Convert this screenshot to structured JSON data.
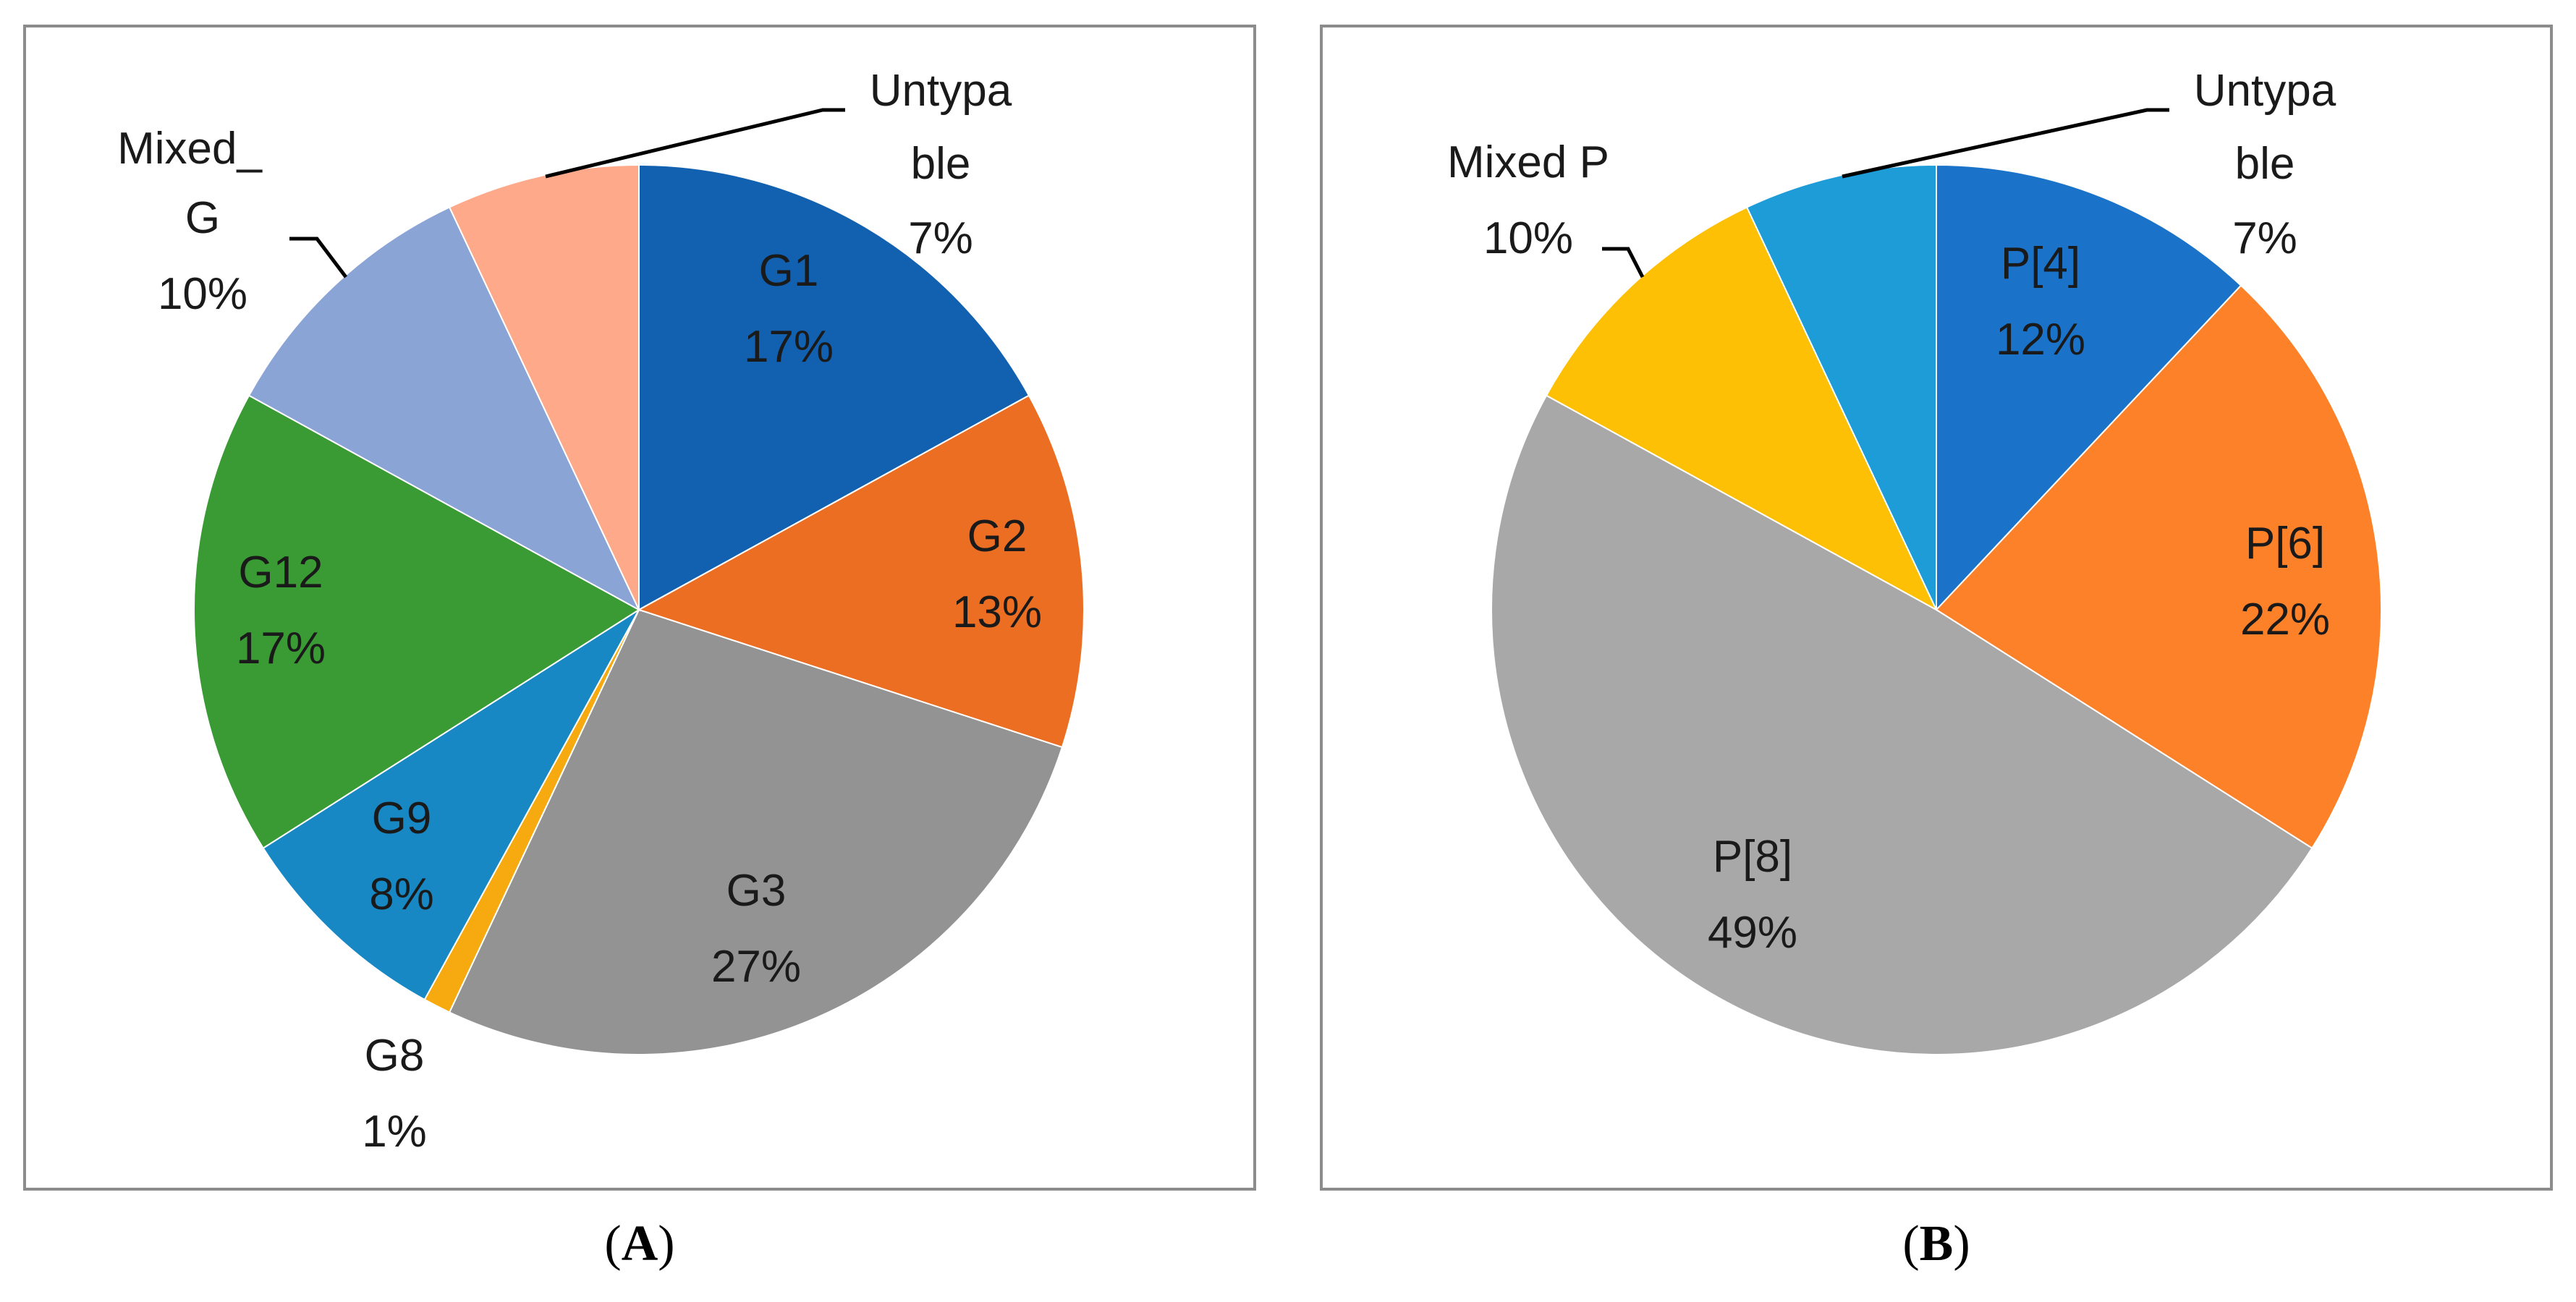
{
  "chart_data": [
    {
      "type": "pie",
      "panel_label": "A",
      "start_angle_deg": 0,
      "direction": "clockwise",
      "slices": [
        {
          "name": "G1",
          "value": 17,
          "label": "17%",
          "color": "#1261b0"
        },
        {
          "name": "G2",
          "value": 13,
          "label": "13%",
          "color": "#ec6e22"
        },
        {
          "name": "G3",
          "value": 27,
          "label": "27%",
          "color": "#939393"
        },
        {
          "name": "G8",
          "value": 1,
          "label": "1%",
          "color": "#f6aa10"
        },
        {
          "name": "G9",
          "value": 8,
          "label": "8%",
          "color": "#1788c4"
        },
        {
          "name": "G12",
          "value": 17,
          "label": "17%",
          "color": "#3a9a34"
        },
        {
          "name": "Mixed_G",
          "value": 10,
          "label": "10%",
          "color": "#8aa4d6",
          "label_lines": [
            "Mixed_",
            "G"
          ]
        },
        {
          "name": "Untypable",
          "value": 7,
          "label": "7%",
          "color": "#fda98a",
          "label_lines": [
            "Untypa",
            "ble"
          ]
        }
      ]
    },
    {
      "type": "pie",
      "panel_label": "B",
      "start_angle_deg": 0,
      "direction": "clockwise",
      "slices": [
        {
          "name": "P[4]",
          "value": 12,
          "label": "12%",
          "color": "#1a73c8"
        },
        {
          "name": "P[6]",
          "value": 22,
          "label": "22%",
          "color": "#fd8128"
        },
        {
          "name": "P[8]",
          "value": 49,
          "label": "49%",
          "color": "#a8a8a8"
        },
        {
          "name": "Mixed P",
          "value": 10,
          "label": "10%",
          "color": "#fdc004"
        },
        {
          "name": "Untypable",
          "value": 7,
          "label": "7%",
          "color": "#1e9cd8",
          "label_lines": [
            "Untypa",
            "ble"
          ]
        }
      ]
    }
  ]
}
